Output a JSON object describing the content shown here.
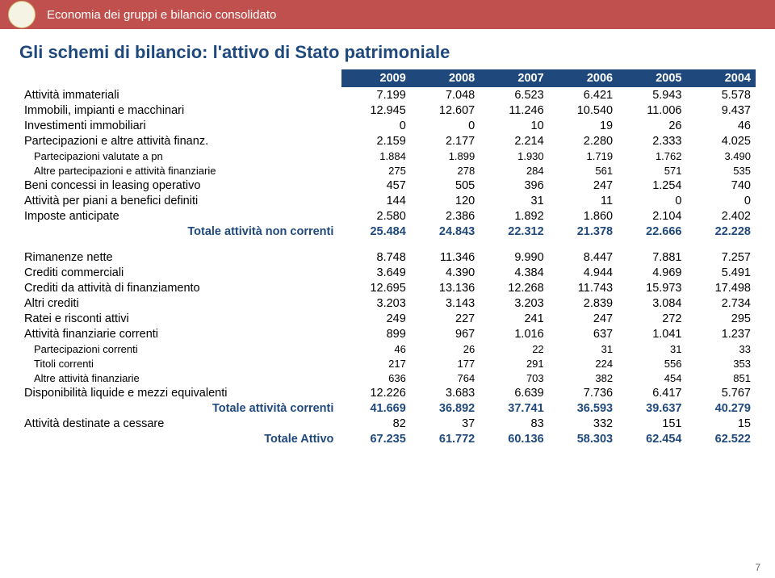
{
  "header": {
    "course": "Economia dei gruppi e bilancio consolidato"
  },
  "title": "Gli schemi di bilancio: l'attivo di Stato patrimoniale",
  "colors": {
    "header_bg": "#c0504d",
    "accent": "#1f497d",
    "text": "#000000"
  },
  "years": [
    "2009",
    "2008",
    "2007",
    "2006",
    "2005",
    "2004"
  ],
  "section1": [
    {
      "label": "Attività immateriali",
      "vals": [
        "7.199",
        "7.048",
        "6.523",
        "6.421",
        "5.943",
        "5.578"
      ]
    },
    {
      "label": "Immobili, impianti e macchinari",
      "vals": [
        "12.945",
        "12.607",
        "11.246",
        "10.540",
        "11.006",
        "9.437"
      ]
    },
    {
      "label": "Investimenti immobiliari",
      "vals": [
        "0",
        "0",
        "10",
        "19",
        "26",
        "46"
      ]
    },
    {
      "label": "Partecipazioni e altre attività finanz.",
      "vals": [
        "2.159",
        "2.177",
        "2.214",
        "2.280",
        "2.333",
        "4.025"
      ]
    },
    {
      "label": "Partecipazioni valutate a pn",
      "sub": true,
      "vals": [
        "1.884",
        "1.899",
        "1.930",
        "1.719",
        "1.762",
        "3.490"
      ]
    },
    {
      "label": "Altre partecipazioni e attività finanziarie",
      "sub": true,
      "vals": [
        "275",
        "278",
        "284",
        "561",
        "571",
        "535"
      ]
    },
    {
      "label": "Beni concessi in leasing operativo",
      "vals": [
        "457",
        "505",
        "396",
        "247",
        "1.254",
        "740"
      ]
    },
    {
      "label": "Attività per piani a benefici definiti",
      "vals": [
        "144",
        "120",
        "31",
        "11",
        "0",
        "0"
      ]
    },
    {
      "label": "Imposte anticipate",
      "vals": [
        "2.580",
        "2.386",
        "1.892",
        "1.860",
        "2.104",
        "2.402"
      ]
    }
  ],
  "total1": {
    "label": "Totale attività non correnti",
    "vals": [
      "25.484",
      "24.843",
      "22.312",
      "21.378",
      "22.666",
      "22.228"
    ]
  },
  "section2": [
    {
      "label": "Rimanenze nette",
      "vals": [
        "8.748",
        "11.346",
        "9.990",
        "8.447",
        "7.881",
        "7.257"
      ]
    },
    {
      "label": "Crediti commerciali",
      "vals": [
        "3.649",
        "4.390",
        "4.384",
        "4.944",
        "4.969",
        "5.491"
      ]
    },
    {
      "label": "Crediti da attività di finanziamento",
      "vals": [
        "12.695",
        "13.136",
        "12.268",
        "11.743",
        "15.973",
        "17.498"
      ]
    },
    {
      "label": "Altri crediti",
      "vals": [
        "3.203",
        "3.143",
        "3.203",
        "2.839",
        "3.084",
        "2.734"
      ]
    },
    {
      "label": "Ratei e risconti attivi",
      "vals": [
        "249",
        "227",
        "241",
        "247",
        "272",
        "295"
      ]
    },
    {
      "label": "Attività finanziarie correnti",
      "vals": [
        "899",
        "967",
        "1.016",
        "637",
        "1.041",
        "1.237"
      ]
    },
    {
      "label": "Partecipazioni correnti",
      "sub": true,
      "vals": [
        "46",
        "26",
        "22",
        "31",
        "31",
        "33"
      ]
    },
    {
      "label": "Titoli correnti",
      "sub": true,
      "vals": [
        "217",
        "177",
        "291",
        "224",
        "556",
        "353"
      ]
    },
    {
      "label": "Altre attività finanziarie",
      "sub": true,
      "vals": [
        "636",
        "764",
        "703",
        "382",
        "454",
        "851"
      ]
    },
    {
      "label": "Disponibilità liquide e mezzi equivalenti",
      "vals": [
        "12.226",
        "3.683",
        "6.639",
        "7.736",
        "6.417",
        "5.767"
      ]
    }
  ],
  "total2": {
    "label": "Totale attività correnti",
    "vals": [
      "41.669",
      "36.892",
      "37.741",
      "36.593",
      "39.637",
      "40.279"
    ]
  },
  "extra": {
    "label": "Attività destinate a cessare",
    "vals": [
      "82",
      "37",
      "83",
      "332",
      "151",
      "15"
    ]
  },
  "grand": {
    "label": "Totale Attivo",
    "vals": [
      "67.235",
      "61.772",
      "60.136",
      "58.303",
      "62.454",
      "62.522"
    ]
  },
  "page_number": "7"
}
